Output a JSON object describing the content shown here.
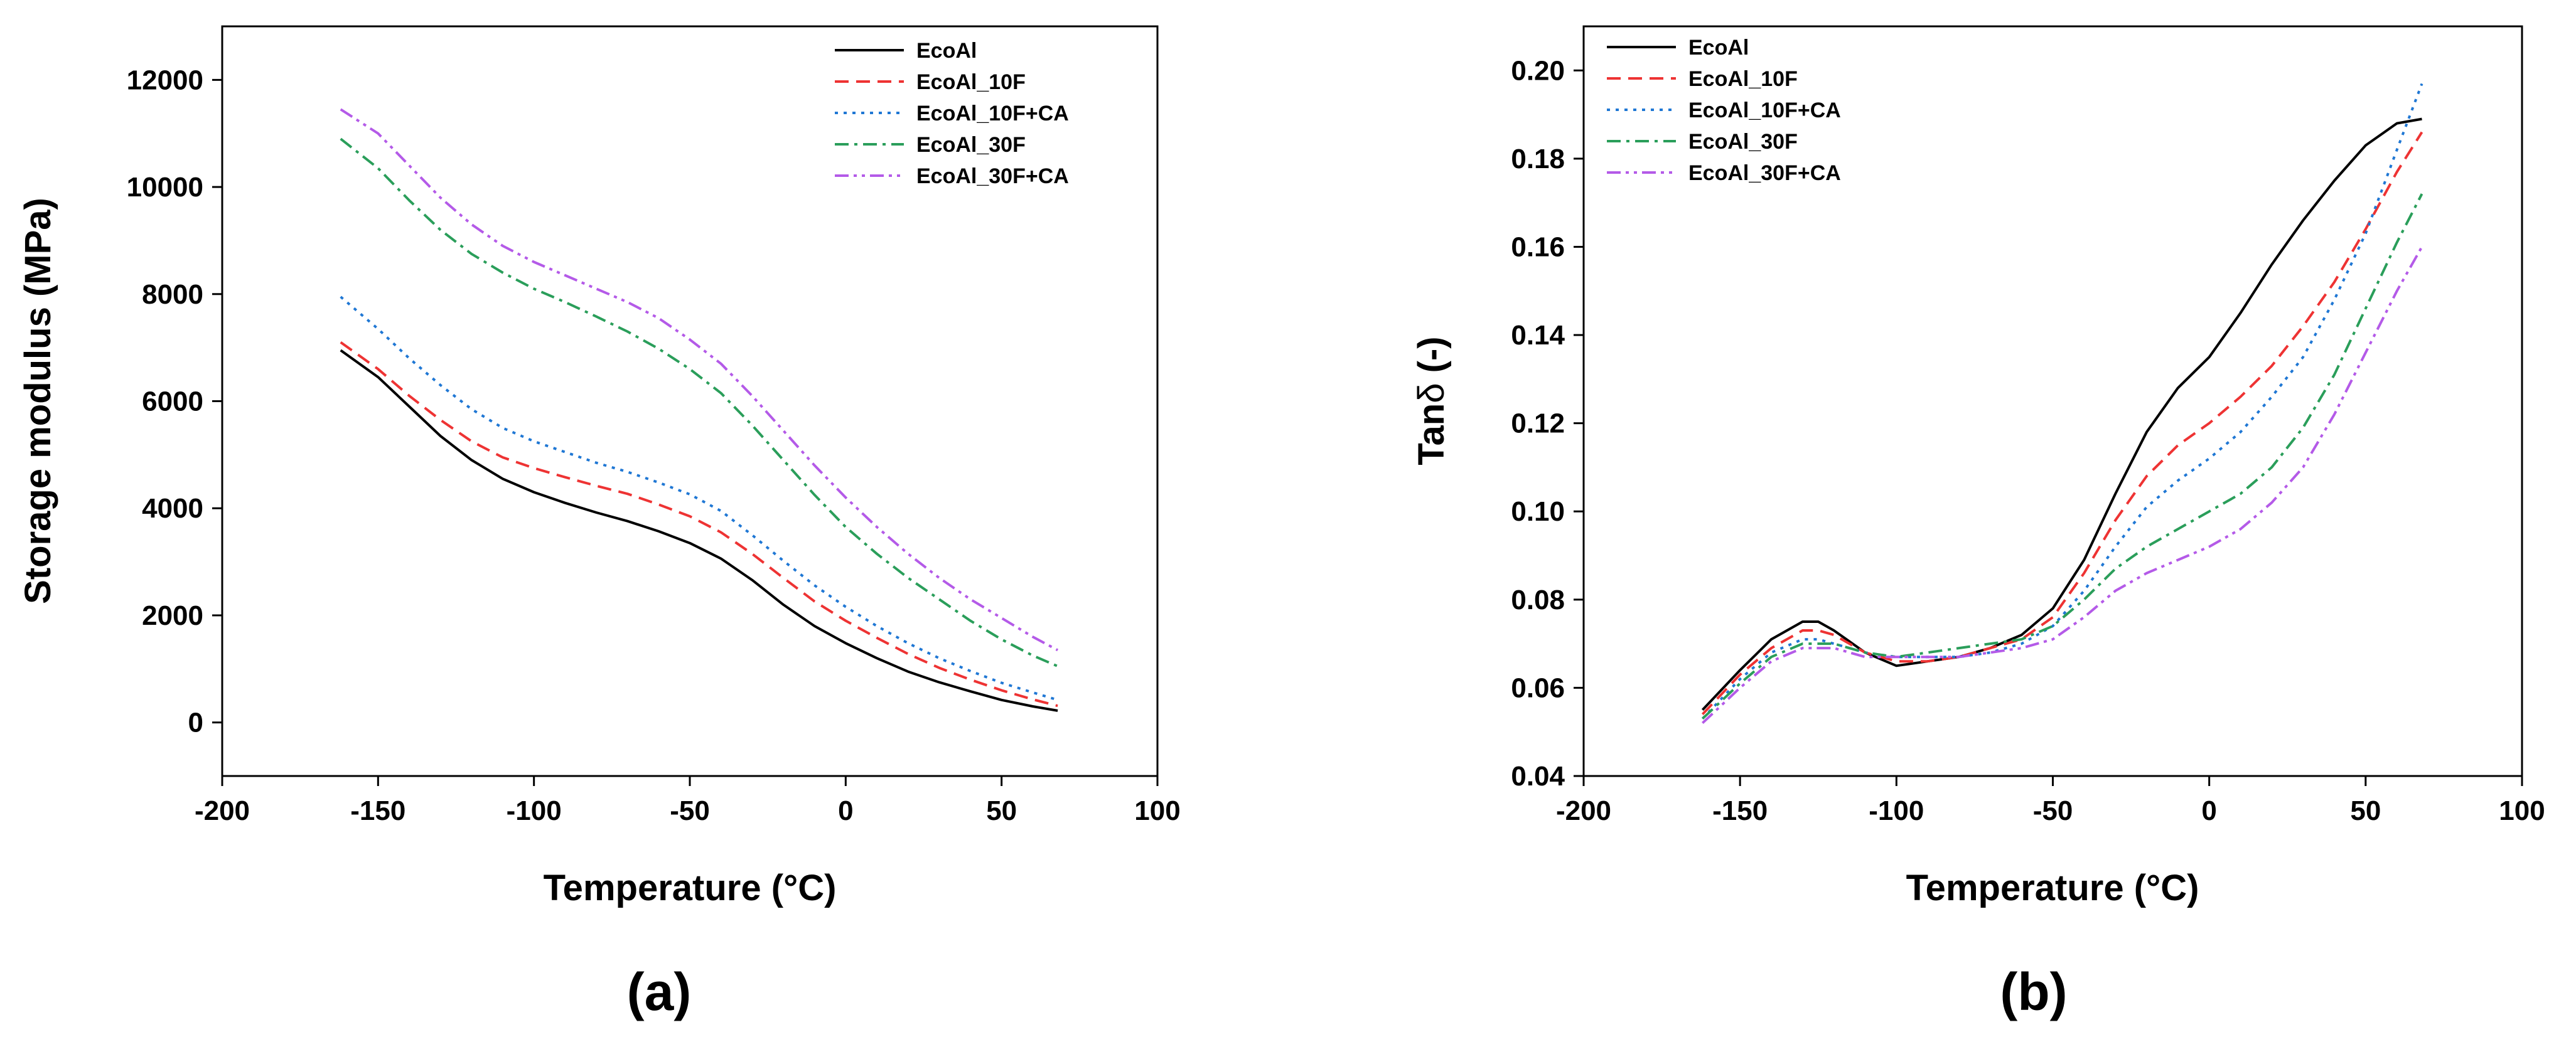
{
  "chart_data": [
    {
      "type": "line",
      "panel_label": "(a)",
      "xlabel": "Temperature (°C)",
      "ylabel": "Storage modulus (MPa)",
      "xlim": [
        -200,
        100
      ],
      "ylim": [
        -1000,
        13000
      ],
      "xticks": [
        -200,
        -150,
        -100,
        -50,
        0,
        50,
        100
      ],
      "yticks": [
        0,
        2000,
        4000,
        6000,
        8000,
        10000,
        12000
      ],
      "legend_position": "top-right",
      "series": [
        {
          "name": "EcoAl",
          "color": "#000000",
          "dash": "solid",
          "x": [
            -162,
            -150,
            -140,
            -130,
            -120,
            -110,
            -100,
            -90,
            -80,
            -70,
            -60,
            -50,
            -40,
            -30,
            -20,
            -10,
            0,
            10,
            20,
            30,
            40,
            50,
            60,
            68
          ],
          "y": [
            6950,
            6450,
            5900,
            5350,
            4900,
            4550,
            4300,
            4100,
            3920,
            3760,
            3570,
            3350,
            3060,
            2660,
            2200,
            1800,
            1480,
            1200,
            950,
            750,
            580,
            420,
            300,
            220
          ]
        },
        {
          "name": "EcoAl_10F",
          "color": "#ee3333",
          "dash": "dashed",
          "x": [
            -162,
            -150,
            -140,
            -130,
            -120,
            -110,
            -100,
            -90,
            -80,
            -70,
            -60,
            -50,
            -40,
            -30,
            -20,
            -10,
            0,
            10,
            20,
            30,
            40,
            50,
            60,
            68
          ],
          "y": [
            7100,
            6600,
            6100,
            5650,
            5250,
            4950,
            4750,
            4580,
            4420,
            4270,
            4070,
            3850,
            3550,
            3150,
            2700,
            2260,
            1900,
            1580,
            1280,
            1020,
            800,
            600,
            430,
            310
          ]
        },
        {
          "name": "EcoAl_10F+CA",
          "color": "#1f77d4",
          "dash": "dotted",
          "x": [
            -162,
            -150,
            -140,
            -130,
            -120,
            -110,
            -100,
            -90,
            -80,
            -70,
            -60,
            -50,
            -40,
            -30,
            -20,
            -10,
            0,
            10,
            20,
            30,
            40,
            50,
            60,
            68
          ],
          "y": [
            7950,
            7350,
            6800,
            6300,
            5850,
            5500,
            5250,
            5050,
            4850,
            4680,
            4480,
            4260,
            3950,
            3500,
            3020,
            2560,
            2160,
            1800,
            1480,
            1200,
            960,
            740,
            560,
            420
          ]
        },
        {
          "name": "EcoAl_30F",
          "color": "#2a9e5a",
          "dash": "dashdot",
          "x": [
            -162,
            -150,
            -140,
            -130,
            -120,
            -110,
            -100,
            -90,
            -80,
            -70,
            -60,
            -50,
            -40,
            -30,
            -20,
            -10,
            0,
            10,
            20,
            30,
            40,
            50,
            60,
            68
          ],
          "y": [
            10900,
            10350,
            9750,
            9200,
            8750,
            8400,
            8100,
            7850,
            7580,
            7300,
            6980,
            6600,
            6150,
            5550,
            4900,
            4250,
            3650,
            3150,
            2700,
            2300,
            1900,
            1550,
            1250,
            1050
          ]
        },
        {
          "name": "EcoAl_30F+CA",
          "color": "#b45ae8",
          "dash": "dashdotdot",
          "x": [
            -162,
            -150,
            -140,
            -130,
            -120,
            -110,
            -100,
            -90,
            -80,
            -70,
            -60,
            -50,
            -40,
            -30,
            -20,
            -10,
            0,
            10,
            20,
            30,
            40,
            50,
            60,
            68
          ],
          "y": [
            11450,
            11000,
            10400,
            9800,
            9300,
            8900,
            8600,
            8350,
            8100,
            7850,
            7550,
            7150,
            6700,
            6100,
            5450,
            4800,
            4200,
            3650,
            3150,
            2700,
            2300,
            1950,
            1600,
            1350
          ]
        }
      ]
    },
    {
      "type": "line",
      "panel_label": "(b)",
      "xlabel": "Temperature (°C)",
      "ylabel_prefix": "Tan",
      "ylabel_symbol": "δ",
      "ylabel_suffix": " (-)",
      "xlim": [
        -200,
        100
      ],
      "ylim": [
        0.04,
        0.21
      ],
      "xticks": [
        -200,
        -150,
        -100,
        -50,
        0,
        50,
        100
      ],
      "yticks": [
        0.04,
        0.06,
        0.08,
        0.1,
        0.12,
        0.14,
        0.16,
        0.18,
        0.2
      ],
      "legend_position": "top-left",
      "series": [
        {
          "name": "EcoAl",
          "color": "#000000",
          "dash": "solid",
          "x": [
            -162,
            -150,
            -140,
            -130,
            -125,
            -120,
            -110,
            -100,
            -90,
            -80,
            -70,
            -60,
            -50,
            -40,
            -30,
            -20,
            -10,
            0,
            10,
            20,
            30,
            40,
            50,
            60,
            68
          ],
          "y": [
            0.055,
            0.064,
            0.071,
            0.075,
            0.075,
            0.073,
            0.068,
            0.065,
            0.066,
            0.067,
            0.069,
            0.072,
            0.078,
            0.089,
            0.104,
            0.118,
            0.128,
            0.135,
            0.145,
            0.156,
            0.166,
            0.175,
            0.183,
            0.188,
            0.189
          ]
        },
        {
          "name": "EcoAl_10F",
          "color": "#ee3333",
          "dash": "dashed",
          "x": [
            -162,
            -150,
            -140,
            -130,
            -125,
            -120,
            -110,
            -100,
            -90,
            -80,
            -70,
            -60,
            -50,
            -40,
            -30,
            -20,
            -10,
            0,
            10,
            20,
            30,
            40,
            50,
            60,
            68
          ],
          "y": [
            0.054,
            0.063,
            0.069,
            0.073,
            0.073,
            0.072,
            0.068,
            0.066,
            0.066,
            0.067,
            0.069,
            0.071,
            0.076,
            0.086,
            0.098,
            0.108,
            0.115,
            0.12,
            0.126,
            0.133,
            0.142,
            0.152,
            0.164,
            0.177,
            0.186
          ]
        },
        {
          "name": "EcoAl_10F+CA",
          "color": "#1f77d4",
          "dash": "dotted",
          "x": [
            -162,
            -150,
            -140,
            -130,
            -125,
            -120,
            -110,
            -100,
            -90,
            -80,
            -70,
            -60,
            -50,
            -40,
            -30,
            -20,
            -10,
            0,
            10,
            20,
            30,
            40,
            50,
            60,
            68
          ],
          "y": [
            0.053,
            0.062,
            0.068,
            0.071,
            0.071,
            0.07,
            0.068,
            0.067,
            0.067,
            0.067,
            0.068,
            0.07,
            0.074,
            0.082,
            0.092,
            0.101,
            0.107,
            0.112,
            0.118,
            0.126,
            0.135,
            0.148,
            0.163,
            0.182,
            0.197
          ]
        },
        {
          "name": "EcoAl_30F",
          "color": "#2a9e5a",
          "dash": "dashdot",
          "x": [
            -162,
            -150,
            -140,
            -130,
            -125,
            -120,
            -110,
            -100,
            -90,
            -80,
            -70,
            -60,
            -50,
            -40,
            -30,
            -20,
            -10,
            0,
            10,
            20,
            30,
            40,
            50,
            60,
            68
          ],
          "y": [
            0.053,
            0.061,
            0.067,
            0.07,
            0.07,
            0.07,
            0.068,
            0.067,
            0.068,
            0.069,
            0.07,
            0.071,
            0.074,
            0.08,
            0.087,
            0.092,
            0.096,
            0.1,
            0.104,
            0.11,
            0.119,
            0.131,
            0.146,
            0.161,
            0.172
          ]
        },
        {
          "name": "EcoAl_30F+CA",
          "color": "#b45ae8",
          "dash": "dashdotdot",
          "x": [
            -162,
            -150,
            -140,
            -130,
            -125,
            -120,
            -110,
            -100,
            -90,
            -80,
            -70,
            -60,
            -50,
            -40,
            -30,
            -20,
            -10,
            0,
            10,
            20,
            30,
            40,
            50,
            60,
            68
          ],
          "y": [
            0.052,
            0.06,
            0.066,
            0.069,
            0.069,
            0.069,
            0.067,
            0.067,
            0.067,
            0.067,
            0.068,
            0.069,
            0.071,
            0.076,
            0.082,
            0.086,
            0.089,
            0.092,
            0.096,
            0.102,
            0.11,
            0.122,
            0.136,
            0.15,
            0.16
          ]
        }
      ]
    }
  ]
}
